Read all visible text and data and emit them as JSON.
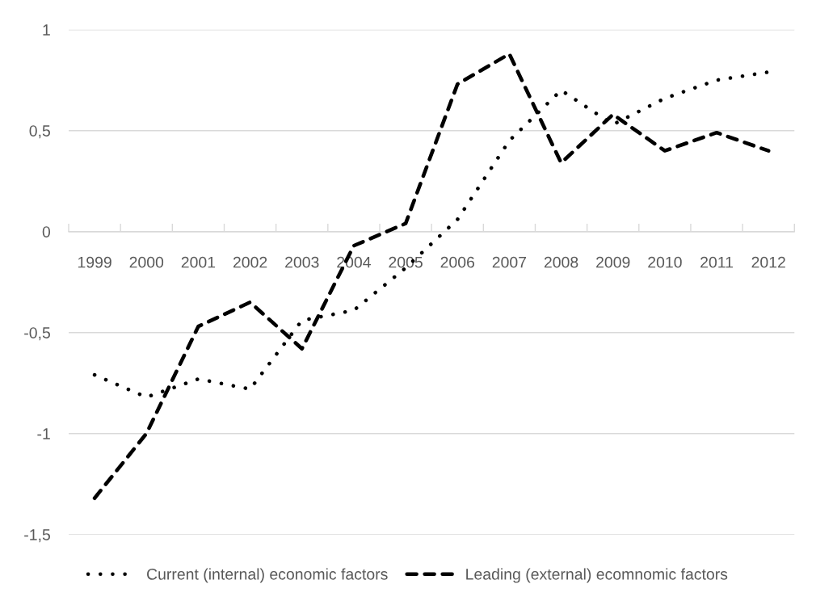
{
  "chart_data": {
    "type": "line",
    "categories": [
      "1999",
      "2000",
      "2001",
      "2002",
      "2003",
      "2004",
      "2005",
      "2006",
      "2007",
      "2008",
      "2009",
      "2010",
      "2011",
      "2012"
    ],
    "series": [
      {
        "name": "Current (internal) economic factors",
        "color": "#000000",
        "line_style": "dotted",
        "values": [
          -0.71,
          -0.82,
          -0.73,
          -0.78,
          -0.44,
          -0.39,
          -0.18,
          0.06,
          0.45,
          0.7,
          0.53,
          0.66,
          0.75,
          0.79
        ]
      },
      {
        "name": "Leading (external) ecomnomic factors",
        "color": "#000000",
        "line_style": "dashed",
        "values": [
          -1.32,
          -1.0,
          -0.47,
          -0.35,
          -0.58,
          -0.07,
          0.04,
          0.73,
          0.88,
          0.34,
          0.58,
          0.4,
          0.49,
          0.4
        ]
      }
    ],
    "ylim": [
      -1.5,
      1
    ],
    "yticks": [
      {
        "value": -1.5,
        "label": "-1,5"
      },
      {
        "value": -1,
        "label": "-1"
      },
      {
        "value": -0.5,
        "label": "-0,5"
      },
      0,
      {
        "value": 0.5,
        "label": "0,5"
      },
      1
    ],
    "grid": "y",
    "legend": "bottom"
  }
}
